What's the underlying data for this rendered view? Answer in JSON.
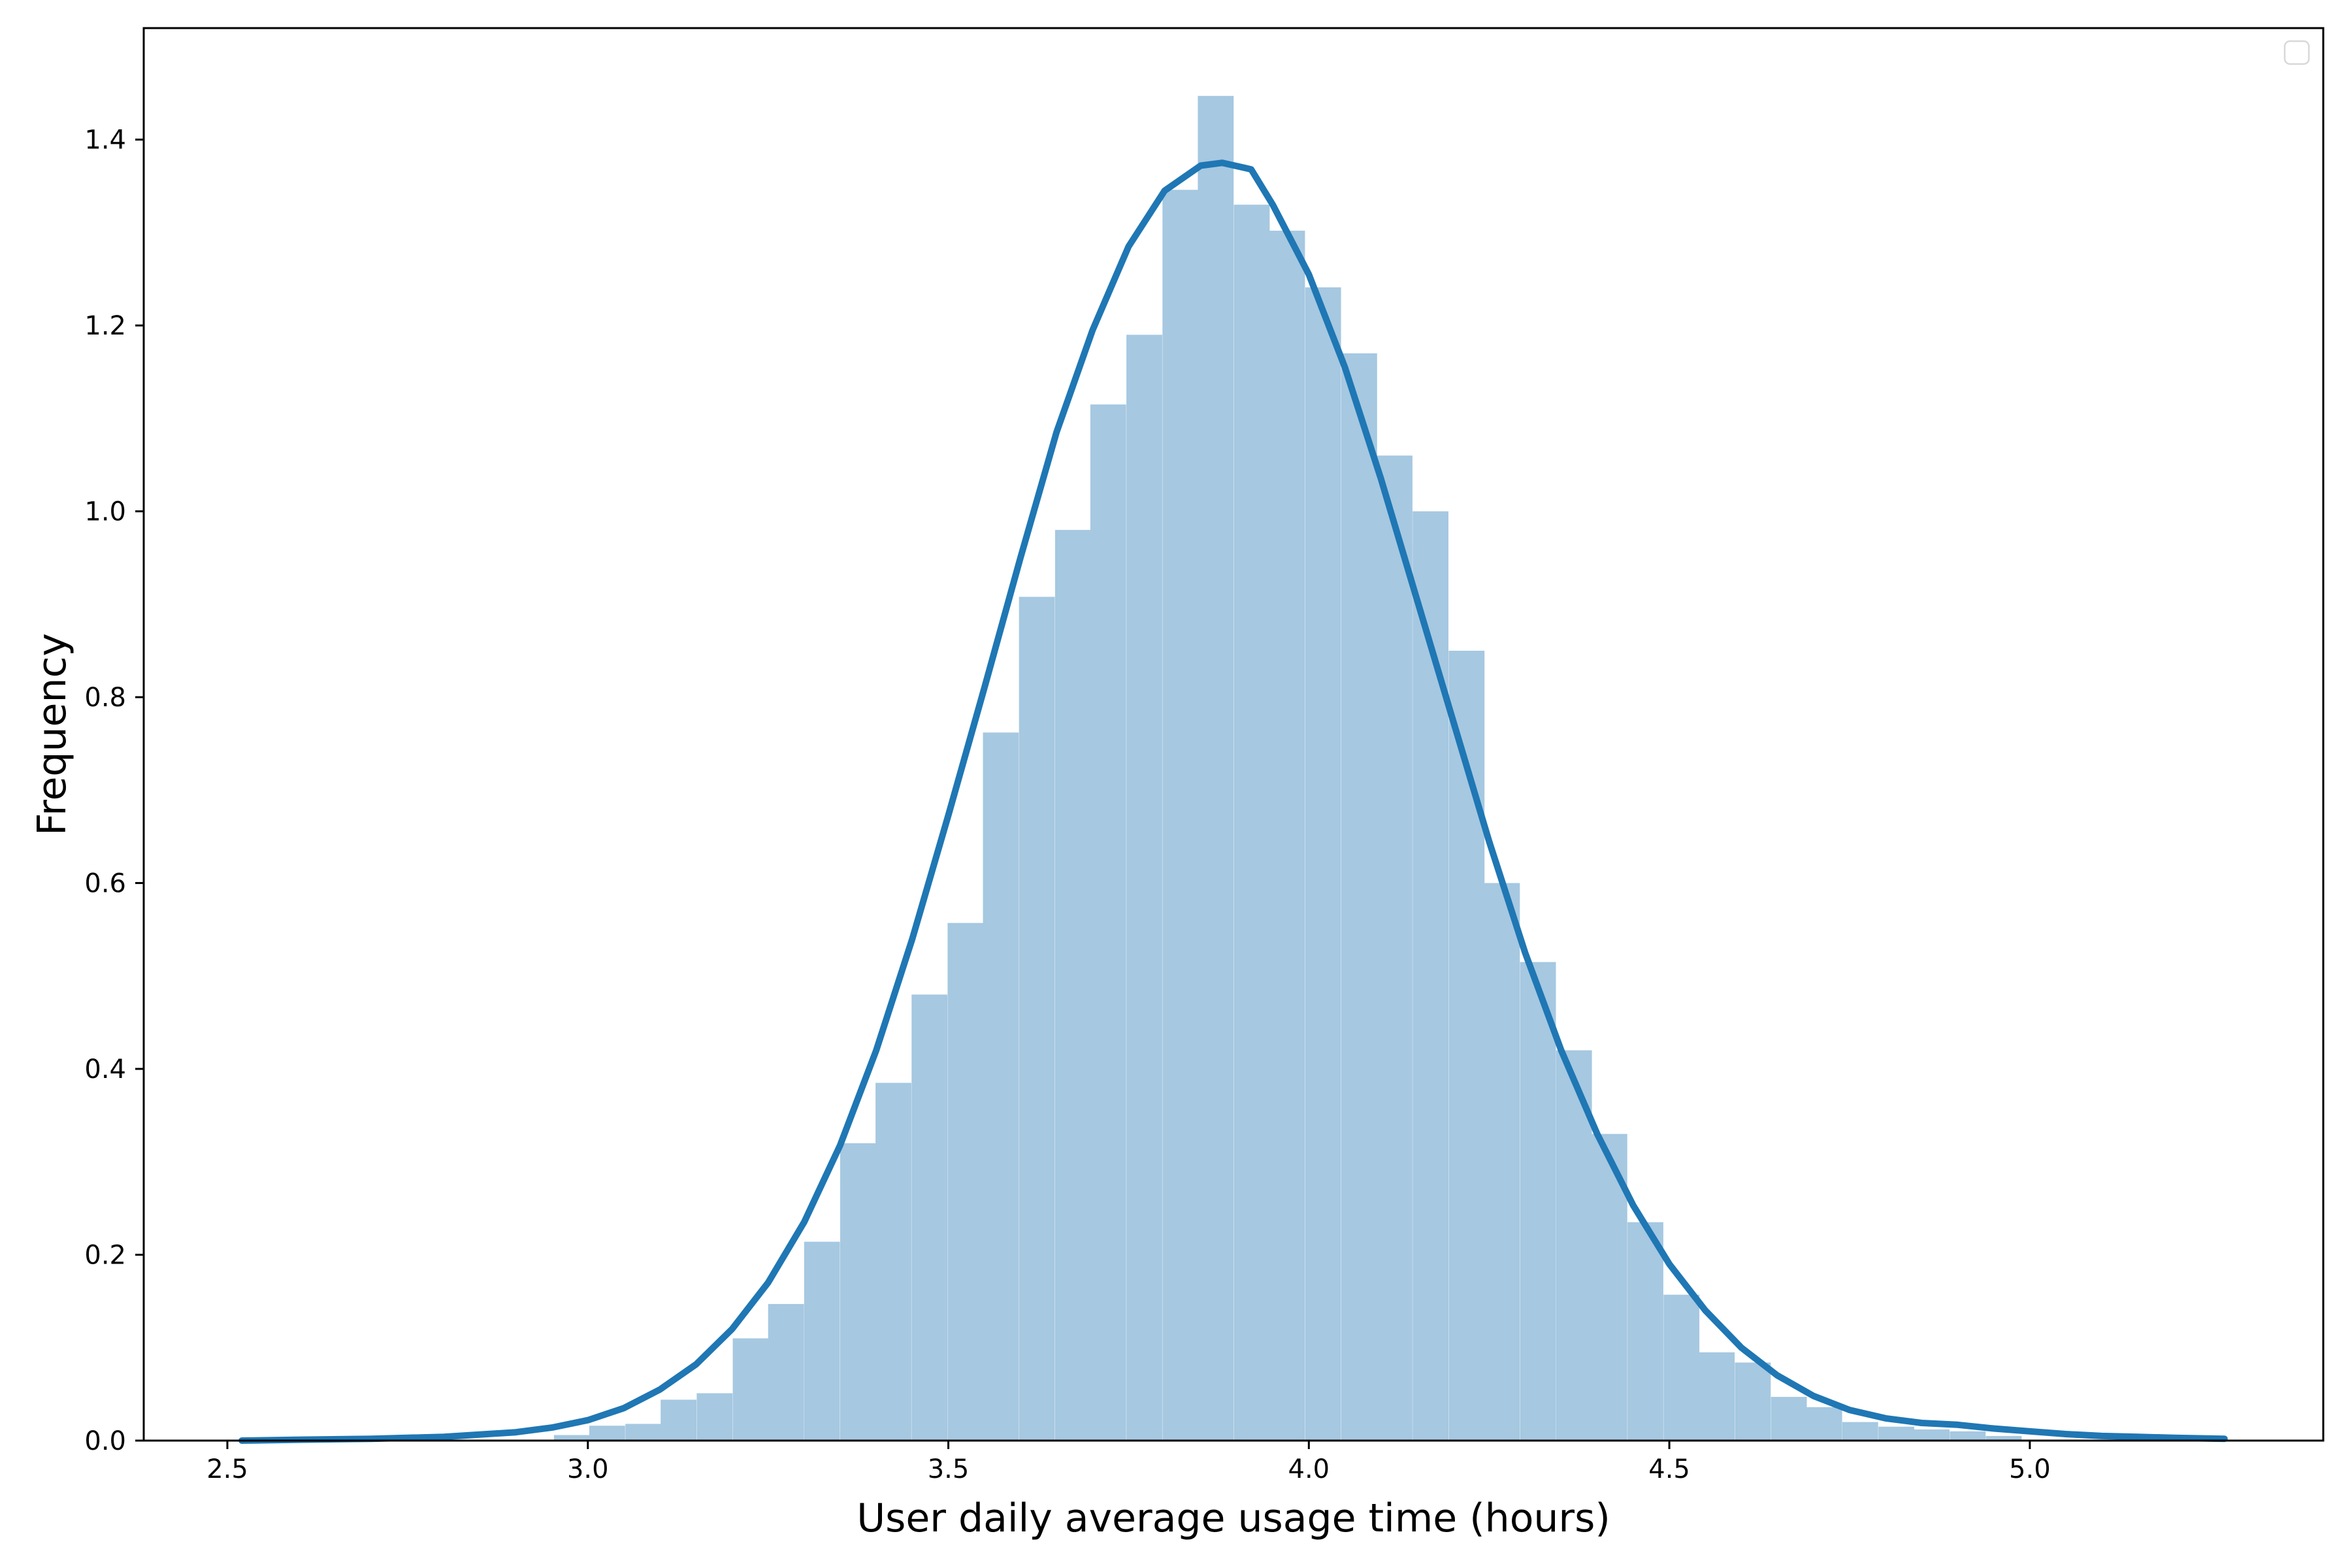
{
  "figure": {
    "background": "#ffffff",
    "border_color": "#000000"
  },
  "chart_data": {
    "type": "histogram",
    "subtype": "histogram_with_kde_curve",
    "title": "",
    "xlabel": "User daily average usage time (hours)",
    "ylabel": "Frequency",
    "grid": false,
    "legend": {
      "visible": true,
      "position": "upper right",
      "entries": []
    },
    "xlim": [
      2.384,
      5.407
    ],
    "ylim": [
      0,
      1.52
    ],
    "x_tick_values": [
      2.5,
      3.0,
      3.5,
      4.0,
      4.5,
      5.0
    ],
    "x_tick_labels": [
      "2.5",
      "3.0",
      "3.5",
      "4.0",
      "4.5",
      "5.0"
    ],
    "y_tick_values": [
      0.0,
      0.2,
      0.4,
      0.6,
      0.8,
      1.0,
      1.2,
      1.4
    ],
    "y_tick_labels": [
      "0.0",
      "0.2",
      "0.4",
      "0.6",
      "0.8",
      "1.0",
      "1.2",
      "1.4"
    ],
    "histogram": {
      "bar_color": "#a6c8e1",
      "bin_width": 0.0497,
      "bin_starts": [
        2.953,
        3.002,
        3.052,
        3.101,
        3.151,
        3.201,
        3.25,
        3.3,
        3.35,
        3.399,
        3.449,
        3.499,
        3.548,
        3.598,
        3.648,
        3.697,
        3.747,
        3.797,
        3.846,
        3.896,
        3.945,
        3.995,
        4.045,
        4.094,
        4.144,
        4.194,
        4.243,
        4.293,
        4.343,
        4.392,
        4.442,
        4.492,
        4.541,
        4.591,
        4.641,
        4.69,
        4.74,
        4.79,
        4.839,
        4.889,
        4.939
      ],
      "heights": [
        0.006,
        0.016,
        0.018,
        0.044,
        0.051,
        0.11,
        0.147,
        0.214,
        0.32,
        0.385,
        0.48,
        0.557,
        0.762,
        0.908,
        0.98,
        1.115,
        1.19,
        1.346,
        1.447,
        1.33,
        1.302,
        1.241,
        1.17,
        1.06,
        1.0,
        0.85,
        0.6,
        0.515,
        0.42,
        0.33,
        0.235,
        0.157,
        0.095,
        0.084,
        0.047,
        0.036,
        0.02,
        0.015,
        0.012,
        0.01,
        0.005
      ]
    },
    "kde": {
      "line_color": "#1f77b4",
      "peak": {
        "x": 3.88,
        "y": 1.375
      },
      "x": [
        2.52,
        2.6,
        2.7,
        2.8,
        2.9,
        2.95,
        3.0,
        3.05,
        3.1,
        3.15,
        3.2,
        3.25,
        3.3,
        3.35,
        3.4,
        3.45,
        3.5,
        3.55,
        3.6,
        3.65,
        3.7,
        3.75,
        3.8,
        3.85,
        3.88,
        3.92,
        3.95,
        4.0,
        4.05,
        4.1,
        4.15,
        4.2,
        4.25,
        4.3,
        4.35,
        4.4,
        4.45,
        4.5,
        4.55,
        4.6,
        4.65,
        4.7,
        4.75,
        4.8,
        4.85,
        4.9,
        4.95,
        5.0,
        5.05,
        5.1,
        5.15,
        5.2,
        5.27
      ],
      "y": [
        0.0,
        0.001,
        0.002,
        0.004,
        0.009,
        0.014,
        0.022,
        0.035,
        0.055,
        0.082,
        0.12,
        0.17,
        0.235,
        0.318,
        0.42,
        0.54,
        0.673,
        0.81,
        0.95,
        1.085,
        1.195,
        1.285,
        1.345,
        1.372,
        1.375,
        1.368,
        1.33,
        1.255,
        1.155,
        1.035,
        0.905,
        0.775,
        0.645,
        0.525,
        0.42,
        0.33,
        0.253,
        0.19,
        0.14,
        0.1,
        0.07,
        0.048,
        0.033,
        0.024,
        0.019,
        0.017,
        0.013,
        0.01,
        0.007,
        0.005,
        0.004,
        0.003,
        0.002
      ]
    }
  }
}
